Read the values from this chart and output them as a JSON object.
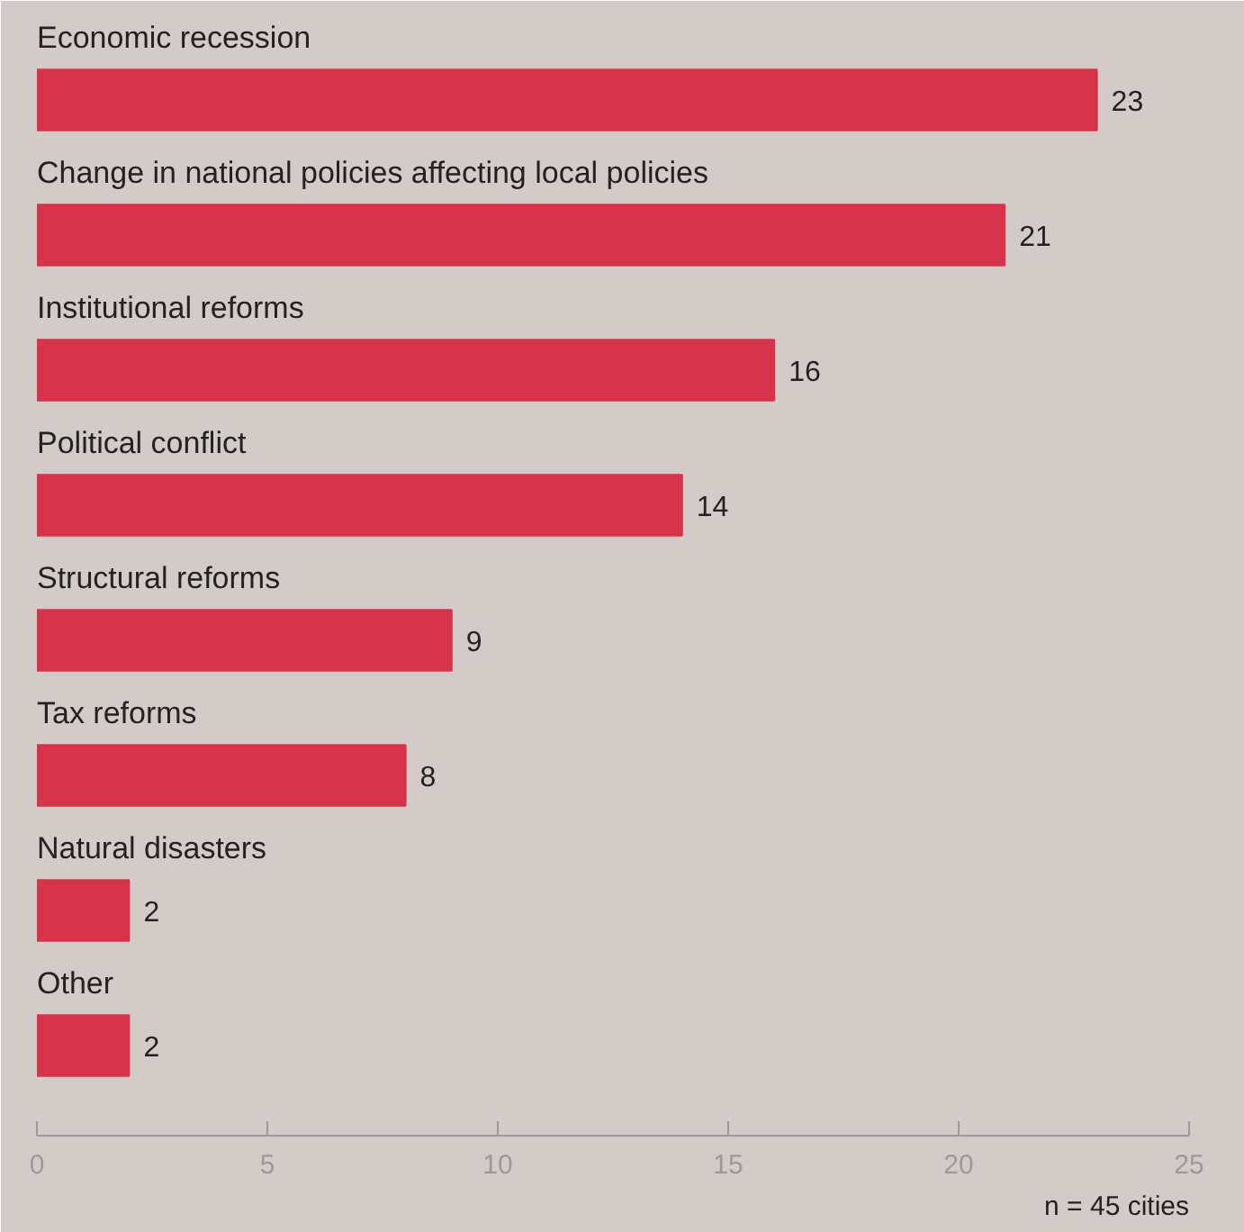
{
  "chart_data": {
    "type": "bar",
    "orientation": "horizontal",
    "categories": [
      "Economic recession",
      "Change in national policies affecting local policies",
      "Institutional reforms",
      "Political conflict",
      "Structural reforms",
      "Tax reforms",
      "Natural disasters",
      "Other"
    ],
    "values": [
      23,
      21,
      16,
      14,
      9,
      8,
      2,
      2
    ],
    "color": "#d7334b",
    "xlim": [
      0,
      25
    ],
    "xticks": [
      0,
      5,
      10,
      15,
      20,
      25
    ],
    "data_labels": true,
    "grid": false,
    "annotations": [
      "n = 45 cities"
    ]
  }
}
